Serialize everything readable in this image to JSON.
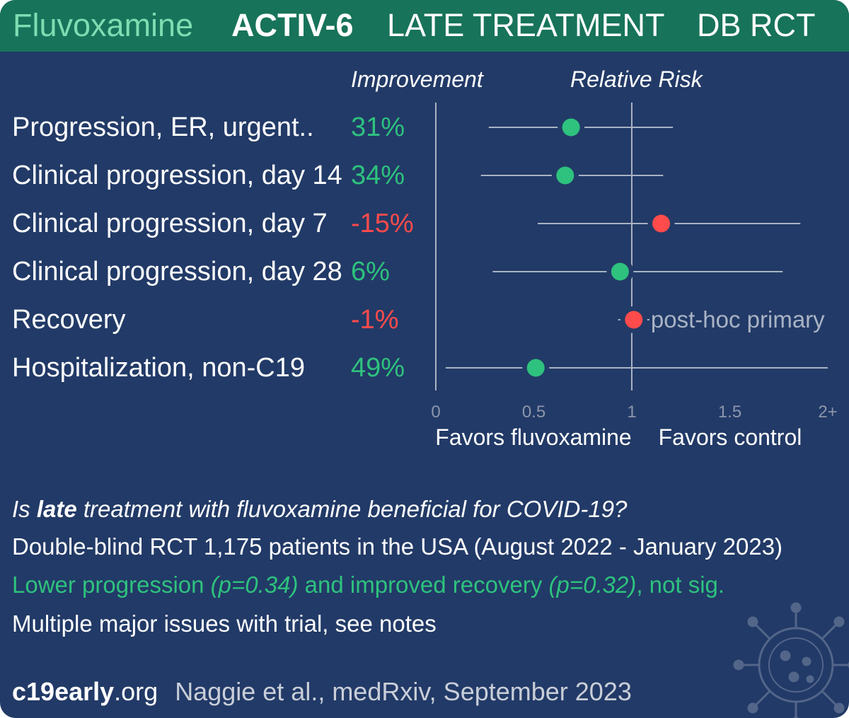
{
  "header": {
    "drug": "Fluvoxamine",
    "trial": "ACTIV-6",
    "treatment_stage": "LATE TREATMENT",
    "design": "DB RCT"
  },
  "columns": {
    "improvement": "Improvement",
    "relative_risk": "Relative Risk"
  },
  "colors": {
    "positive": "#2ec27e",
    "negative": "#ff4b4b",
    "header_bg": "#17735a",
    "background": "#223a67"
  },
  "chart_data": {
    "type": "forest",
    "x_axis": {
      "range": [
        0,
        2
      ],
      "ticks": [
        "0",
        "0.5",
        "1",
        "1.5",
        "2+"
      ],
      "reference_line": 1
    },
    "favors_left": "Favors fluvoxamine",
    "favors_right": "Favors control",
    "outcomes": [
      {
        "label": "Progression, ER, urgent..",
        "improvement": "31%",
        "rr": 0.69,
        "ci": [
          0.27,
          1.21
        ],
        "favorable": true
      },
      {
        "label": "Clinical progression, day 14",
        "improvement": "34%",
        "rr": 0.66,
        "ci": [
          0.23,
          1.16
        ],
        "favorable": true
      },
      {
        "label": "Clinical progression, day 7",
        "improvement": "-15%",
        "rr": 1.15,
        "ci": [
          0.52,
          1.86
        ],
        "favorable": false
      },
      {
        "label": "Clinical progression, day 28",
        "improvement": "6%",
        "rr": 0.94,
        "ci": [
          0.29,
          1.77
        ],
        "favorable": true
      },
      {
        "label": "Recovery",
        "improvement": "-1%",
        "rr": 1.01,
        "ci": [
          0.93,
          1.09
        ],
        "favorable": false,
        "note": "post-hoc primary"
      },
      {
        "label": "Hospitalization, non-C19",
        "improvement": "49%",
        "rr": 0.51,
        "ci": [
          0.05,
          2.0
        ],
        "favorable": true
      }
    ]
  },
  "summary": {
    "question_prefix": "Is ",
    "question_bold": "late",
    "question_suffix": " treatment with fluvoxamine beneficial for COVID-19?",
    "design_line": "Double-blind RCT 1,175 patients in the USA (August 2022 - January 2023)",
    "result_a": "Lower progression ",
    "result_p1": "(p=0.34)",
    "result_b": " and improved recovery ",
    "result_p2": "(p=0.32)",
    "result_c": ", not sig.",
    "notes_line": "Multiple major issues with trial, see notes"
  },
  "footer": {
    "site": "c19early",
    "site_tld": ".org",
    "citation": "Naggie et al., medRxiv, September 2023"
  }
}
